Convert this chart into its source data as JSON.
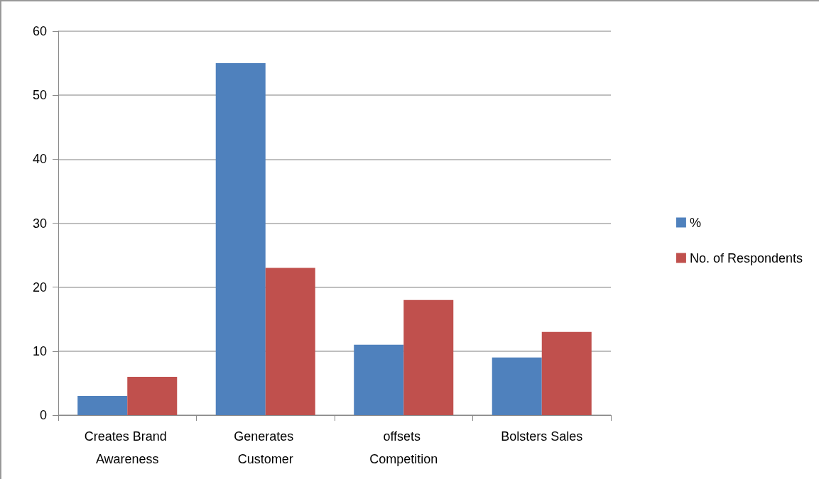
{
  "chart_data": {
    "type": "bar",
    "categories": [
      "Creates Brand Awareness",
      "Generates Customer",
      "offsets Competition",
      "Bolsters Sales"
    ],
    "series": [
      {
        "name": "%",
        "color": "#4f81bd",
        "values": [
          3,
          55,
          11,
          9
        ]
      },
      {
        "name": "No. of Respondents",
        "color": "#c0504d",
        "values": [
          6,
          23,
          18,
          13
        ]
      }
    ],
    "ylim": [
      0,
      60
    ],
    "yticks": [
      0,
      10,
      20,
      30,
      40,
      50,
      60
    ],
    "grid": "y",
    "legend": "right"
  }
}
